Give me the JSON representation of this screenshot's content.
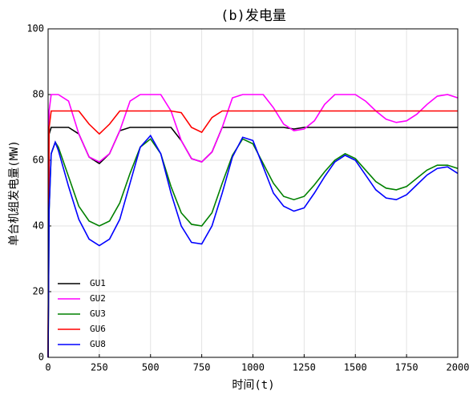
{
  "chart_data": {
    "type": "line",
    "title": "(b)发电量",
    "xlabel": "时间(t)",
    "ylabel": "单台机组发电量(MW)",
    "x": [
      0,
      5,
      15,
      35,
      50,
      100,
      150,
      200,
      250,
      300,
      350,
      400,
      450,
      500,
      550,
      600,
      650,
      700,
      750,
      800,
      850,
      900,
      950,
      1000,
      1050,
      1100,
      1150,
      1200,
      1250,
      1300,
      1350,
      1400,
      1450,
      1500,
      1550,
      1600,
      1650,
      1700,
      1750,
      1800,
      1850,
      1900,
      1950,
      2000
    ],
    "series": [
      {
        "name": "GU1",
        "color": "#000000",
        "values": [
          0,
          68,
          70,
          70,
          70,
          70,
          68,
          61,
          59,
          62,
          69,
          70,
          70,
          70,
          70,
          70,
          66,
          60.5,
          59.5,
          62.5,
          70,
          70,
          70,
          70,
          70,
          70,
          70,
          69.5,
          70,
          70,
          70,
          70,
          70,
          70,
          70,
          70,
          70,
          70,
          70,
          70,
          70,
          70,
          70,
          70
        ]
      },
      {
        "name": "GU2",
        "color": "#ff00ff",
        "values": [
          0,
          75,
          80,
          80,
          80,
          78,
          68,
          61,
          59.5,
          62,
          69,
          78,
          80,
          80,
          80,
          75,
          66,
          60.5,
          59.5,
          62.5,
          70,
          79,
          80,
          80,
          80,
          76,
          71,
          69,
          69.5,
          72,
          77,
          80,
          80,
          80,
          78,
          75,
          72.5,
          71.5,
          72,
          74,
          77,
          79.5,
          80,
          79
        ]
      },
      {
        "name": "GU3",
        "color": "#008000",
        "values": [
          0,
          45,
          62,
          65.5,
          64,
          55,
          46,
          41.5,
          40,
          41.5,
          47,
          56,
          64,
          66.5,
          62,
          52,
          44,
          40.5,
          40,
          44,
          53,
          61.5,
          66.5,
          65,
          59,
          53,
          49,
          48,
          49,
          52.5,
          56.5,
          60,
          62,
          60.5,
          57,
          53.5,
          51.5,
          51,
          52,
          54.5,
          57,
          58.5,
          58.5,
          57.5
        ]
      },
      {
        "name": "GU6",
        "color": "#ff0000",
        "values": [
          0,
          70,
          75,
          75,
          75,
          75,
          75,
          71,
          68,
          71,
          75,
          75,
          75,
          75,
          75,
          75,
          74.5,
          70,
          68.5,
          73,
          75,
          75,
          75,
          75,
          75,
          75,
          75,
          75,
          75,
          75,
          75,
          75,
          75,
          75,
          75,
          75,
          75,
          75,
          75,
          75,
          75,
          75,
          75,
          75
        ]
      },
      {
        "name": "GU8",
        "color": "#0000ff",
        "values": [
          0,
          45,
          62,
          65.5,
          63,
          52,
          42,
          36,
          34,
          36,
          42,
          53,
          64,
          67.5,
          62,
          50,
          40,
          35,
          34.5,
          40,
          50,
          61,
          67,
          66,
          58,
          50,
          46,
          44.5,
          45.5,
          50,
          55,
          59.5,
          61.5,
          60,
          55.5,
          51,
          48.5,
          48,
          49.5,
          52.5,
          55.5,
          57.5,
          58,
          56
        ]
      }
    ],
    "xlim": [
      0,
      2000
    ],
    "xticks": [
      0,
      250,
      500,
      750,
      1000,
      1250,
      1500,
      1750,
      2000
    ],
    "ylim": [
      0,
      100
    ],
    "yticks": [
      0,
      20,
      40,
      60,
      80,
      100
    ],
    "grid": true,
    "legend": "lower left"
  }
}
